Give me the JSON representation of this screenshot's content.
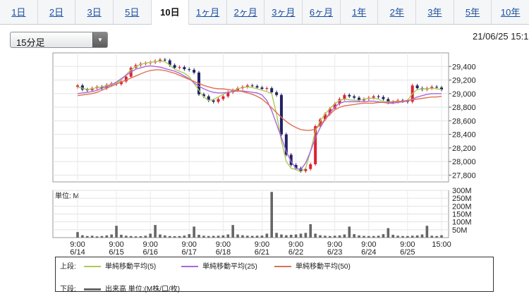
{
  "tabs": [
    "1日",
    "2日",
    "3日",
    "5日",
    "10日",
    "1ヶ月",
    "2ヶ月",
    "3ヶ月",
    "6ヶ月",
    "1年",
    "2年",
    "3年",
    "5年",
    "10年"
  ],
  "active_tab": "10日",
  "interval_select": "15分足",
  "datetime": "21/06/25 15:1",
  "chart_data": [
    {
      "type": "line",
      "panel": "price",
      "y_unit": "JPY",
      "ylim": [
        27700,
        29600
      ],
      "yticks": [
        "29,400",
        "29,200",
        "29,000",
        "28,800",
        "28,600",
        "28,400",
        "28,200",
        "28,000",
        "27,800"
      ],
      "ytick_values": [
        29400,
        29200,
        29000,
        28800,
        28600,
        28400,
        28200,
        28000,
        27800
      ],
      "x_labels": [
        [
          "9:00",
          "6/14"
        ],
        [
          "9:00",
          "6/15"
        ],
        [
          "9:00",
          "6/16"
        ],
        [
          "9:00",
          "6/17"
        ],
        [
          "9:00",
          "6/18"
        ],
        [
          "9:00",
          "6/21"
        ],
        [
          "9:00",
          "6/22"
        ],
        [
          "9:00",
          "6/23"
        ],
        [
          "9:00",
          "6/24"
        ],
        [
          "9:00",
          "6/25"
        ],
        [
          "15:00",
          ""
        ]
      ],
      "grid": true,
      "series": [
        {
          "name": "ローソク足",
          "kind": "candle",
          "values": [
            29120,
            29060,
            29050,
            29080,
            29100,
            29080,
            29130,
            29150,
            29140,
            29180,
            29250,
            29380,
            29420,
            29440,
            29450,
            29460,
            29480,
            29500,
            29490,
            29420,
            29380,
            29390,
            29360,
            29350,
            29310,
            28990,
            28960,
            28900,
            28880,
            28920,
            28960,
            29020,
            29050,
            29080,
            29100,
            29120,
            29110,
            29090,
            29070,
            29080,
            29020,
            28980,
            28400,
            28100,
            27950,
            27900,
            27860,
            27890,
            27960,
            28520,
            28620,
            28700,
            28780,
            28850,
            28920,
            28980,
            28960,
            28940,
            28900,
            28920,
            28940,
            28960,
            28950,
            28920,
            28870,
            28880,
            28900,
            28890,
            28880,
            29120,
            29080,
            29060,
            29080,
            29100,
            29090,
            29060
          ]
        },
        {
          "name": "単純移動平均(5)",
          "kind": "line",
          "color": "#aacc55",
          "values": [
            29100,
            29080,
            29060,
            29070,
            29090,
            29100,
            29120,
            29140,
            29150,
            29200,
            29280,
            29350,
            29400,
            29430,
            29450,
            29460,
            29470,
            29480,
            29470,
            29420,
            29360,
            29330,
            29300,
            29250,
            29150,
            29050,
            28950,
            28900,
            28910,
            28950,
            28990,
            29020,
            29040,
            29070,
            29090,
            29100,
            29090,
            29070,
            29050,
            29030,
            29000,
            28700,
            28300,
            28000,
            27900,
            27880,
            27850,
            27900,
            28150,
            28450,
            28600,
            28700,
            28780,
            28850,
            28900,
            28920,
            28910,
            28900,
            28900,
            28920,
            28930,
            28930,
            28920,
            28880,
            28880,
            28880,
            28890,
            28880,
            28900,
            29000,
            29060,
            29070,
            29070,
            29080,
            29070,
            29060
          ]
        },
        {
          "name": "単純移動平均(25)",
          "kind": "line",
          "color": "#aa66dd",
          "values": [
            29000,
            29010,
            29020,
            29030,
            29050,
            29080,
            29100,
            29130,
            29170,
            29220,
            29270,
            29320,
            29360,
            29380,
            29400,
            29410,
            29400,
            29390,
            29370,
            29350,
            29330,
            29300,
            29260,
            29220,
            29160,
            29110,
            29070,
            29040,
            29020,
            29010,
            29010,
            29020,
            29030,
            29040,
            29040,
            29030,
            29020,
            29010,
            28980,
            28900,
            28750,
            28550,
            28350,
            28150,
            28000,
            27900,
            27880,
            27980,
            28150,
            28350,
            28500,
            28620,
            28720,
            28800,
            28860,
            28880,
            28880,
            28880,
            28880,
            28880,
            28890,
            28890,
            28880,
            28870,
            28860,
            28860,
            28870,
            28880,
            28890,
            28920,
            28950,
            28970,
            28990,
            29000,
            29000,
            29000
          ]
        },
        {
          "name": "単純移動平均(50)",
          "kind": "line",
          "color": "#e07050",
          "values": [
            28970,
            28980,
            28990,
            29000,
            29020,
            29050,
            29080,
            29110,
            29140,
            29170,
            29200,
            29230,
            29260,
            29290,
            29320,
            29340,
            29350,
            29350,
            29340,
            29320,
            29300,
            29270,
            29240,
            29210,
            29180,
            29150,
            29120,
            29100,
            29080,
            29070,
            29070,
            29060,
            29050,
            29040,
            29030,
            29010,
            28990,
            28960,
            28920,
            28860,
            28790,
            28720,
            28650,
            28590,
            28540,
            28500,
            28470,
            28460,
            28460,
            28480,
            28540,
            28620,
            28700,
            28760,
            28800,
            28820,
            28830,
            28840,
            28850,
            28860,
            28860,
            28860,
            28870,
            28870,
            28870,
            28880,
            28880,
            28890,
            28900,
            28910,
            28920,
            28930,
            28940,
            28950,
            28950,
            28960
          ]
        }
      ]
    },
    {
      "type": "bar",
      "panel": "volume",
      "label": "単位: M",
      "ylim": [
        0,
        300
      ],
      "yticks": [
        "300M",
        "250M",
        "200M",
        "150M",
        "100M",
        "50M"
      ],
      "ytick_values": [
        300,
        250,
        200,
        150,
        100,
        50
      ],
      "values": [
        35,
        15,
        10,
        12,
        8,
        10,
        14,
        20,
        75,
        18,
        12,
        10,
        8,
        9,
        12,
        25,
        80,
        20,
        14,
        10,
        9,
        10,
        13,
        22,
        70,
        18,
        12,
        10,
        11,
        12,
        14,
        20,
        80,
        20,
        15,
        12,
        11,
        12,
        13,
        25,
        290,
        30,
        20,
        15,
        18,
        20,
        25,
        30,
        85,
        25,
        15,
        12,
        10,
        12,
        14,
        20,
        70,
        22,
        14,
        11,
        10,
        10,
        12,
        22,
        60,
        18,
        12,
        10,
        10,
        12,
        14,
        20,
        75,
        12,
        10,
        15
      ]
    }
  ],
  "legend": {
    "upper_label": "上段:",
    "lower_label": "下段:",
    "items": [
      {
        "label": "単純移動平均(5)",
        "color": "#aacc55"
      },
      {
        "label": "単純移動平均(25)",
        "color": "#aa66dd"
      },
      {
        "label": "単純移動平均(50)",
        "color": "#e07050"
      }
    ],
    "volume_item": {
      "label": "出来高 単位:(M株/口/枚)",
      "color": "#666666"
    }
  }
}
